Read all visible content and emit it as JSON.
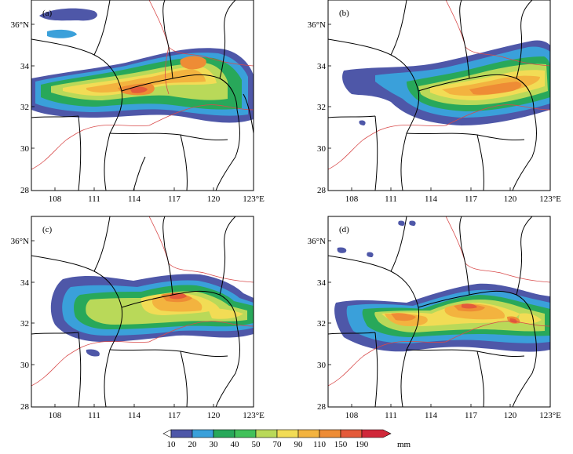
{
  "panels": [
    {
      "label": "(a)"
    },
    {
      "label": "(b)"
    },
    {
      "label": "(c)"
    },
    {
      "label": "(d)"
    }
  ],
  "axes": {
    "x_ticks": [
      "108",
      "111",
      "114",
      "117",
      "120",
      "123°E"
    ],
    "y_ticks": [
      "36°N",
      "34",
      "32",
      "30",
      "28"
    ]
  },
  "colorbar": {
    "ticks": [
      "10",
      "20",
      "30",
      "40",
      "50",
      "70",
      "90",
      "110",
      "150",
      "190"
    ],
    "unit": "mm",
    "colors": [
      "#4e57a8",
      "#3aa0da",
      "#28a85a",
      "#41c15a",
      "#b9d959",
      "#f2dc55",
      "#f3b33f",
      "#ee8c35",
      "#e45a3a",
      "#d0283a"
    ]
  },
  "colors": {
    "boundary": "#000000",
    "river": "#d84a4a"
  }
}
